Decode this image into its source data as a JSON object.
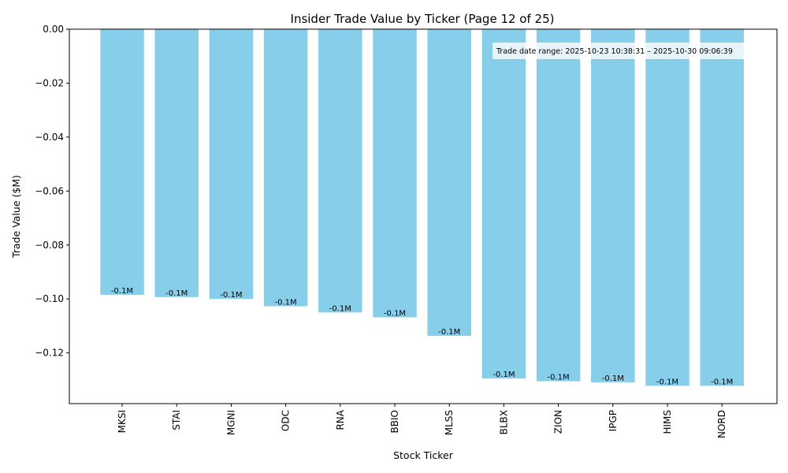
{
  "chart_data": {
    "type": "bar",
    "title": "Insider Trade Value by Ticker (Page 12 of 25)",
    "xlabel": "Stock Ticker",
    "ylabel": "Trade Value ($M)",
    "categories": [
      "MKSI",
      "STAI",
      "MGNI",
      "ODC",
      "RNA",
      "BBIO",
      "MLSS",
      "BLBX",
      "ZION",
      "IPGP",
      "HIMS",
      "NORD"
    ],
    "values": [
      -0.0985,
      -0.0993,
      -0.1,
      -0.1027,
      -0.105,
      -0.1068,
      -0.1137,
      -0.1295,
      -0.1305,
      -0.1309,
      -0.1322,
      -0.1322
    ],
    "data_labels": [
      "-0.1M",
      "-0.1M",
      "-0.1M",
      "-0.1M",
      "-0.1M",
      "-0.1M",
      "-0.1M",
      "-0.1M",
      "-0.1M",
      "-0.1M",
      "-0.1M",
      "-0.1M"
    ],
    "ylim": [
      -0.1388,
      0.0
    ],
    "yticks": [
      0.0,
      -0.02,
      -0.04,
      -0.06,
      -0.08,
      -0.1,
      -0.12
    ],
    "ytick_labels": [
      "0.00",
      "−0.02",
      "−0.04",
      "−0.06",
      "−0.08",
      "−0.10",
      "−0.12"
    ],
    "annotation": "Trade date range: 2025-10-23 10:38:31 – 2025-10-30 09:06:39",
    "bar_color": "#87ceeb",
    "grid": false,
    "legend": "none"
  }
}
